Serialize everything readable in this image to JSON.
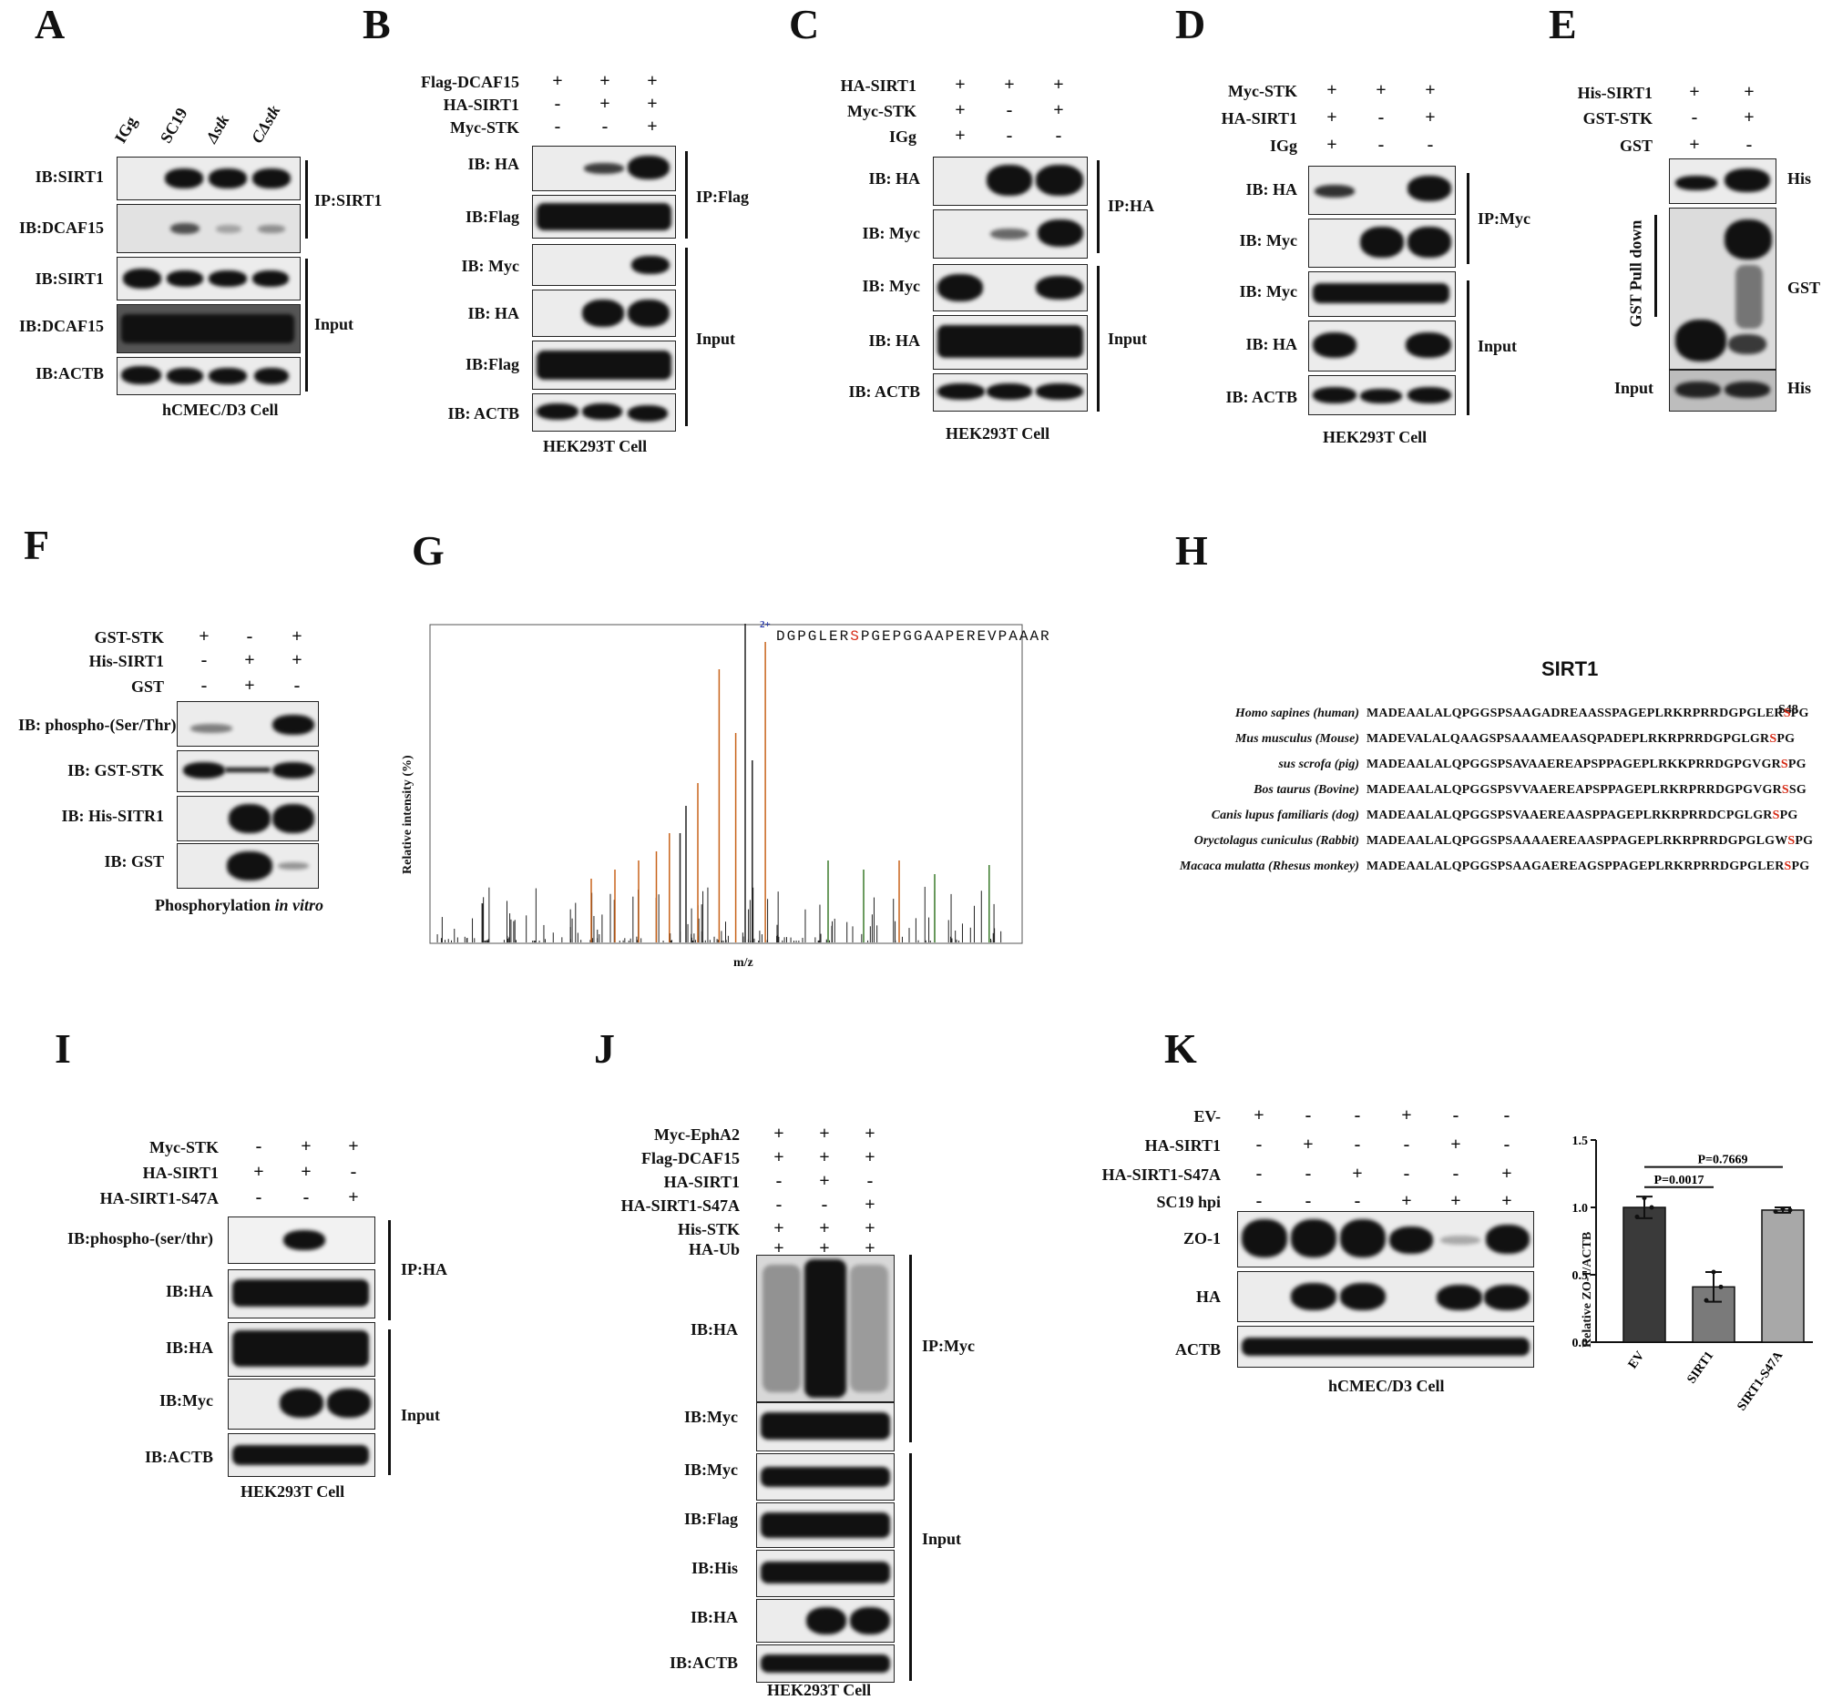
{
  "letters": {
    "A": "A",
    "B": "B",
    "C": "C",
    "D": "D",
    "E": "E",
    "F": "F",
    "G": "G",
    "H": "H",
    "I": "I",
    "J": "J",
    "K": "K"
  },
  "A": {
    "lanes": [
      "IGg",
      "SC19",
      "Δstk",
      "CΔstk"
    ],
    "rows": [
      "IB:SIRT1",
      "IB:DCAF15",
      "IB:SIRT1",
      "IB:DCAF15",
      "IB:ACTB"
    ],
    "groups": [
      "IP:SIRT1",
      "Input"
    ],
    "cell": "hCMEC/D3 Cell"
  },
  "B": {
    "conditions": [
      {
        "name": "Flag-DCAF15",
        "signs": [
          "+",
          "+",
          "+"
        ]
      },
      {
        "name": "HA-SIRT1",
        "signs": [
          "-",
          "+",
          "+"
        ]
      },
      {
        "name": "Myc-STK",
        "signs": [
          "-",
          "-",
          "+"
        ]
      }
    ],
    "rows": [
      "IB: HA",
      "IB:Flag",
      "IB: Myc",
      "IB: HA",
      "IB:Flag",
      "IB: ACTB"
    ],
    "groups": [
      "IP:Flag",
      "Input"
    ],
    "cell": "HEK293T Cell"
  },
  "C": {
    "conditions": [
      {
        "name": "HA-SIRT1",
        "signs": [
          "+",
          "+",
          "+"
        ]
      },
      {
        "name": "Myc-STK",
        "signs": [
          "+",
          "-",
          "+"
        ]
      },
      {
        "name": "IGg",
        "signs": [
          "+",
          "-",
          "-"
        ]
      }
    ],
    "rows": [
      "IB: HA",
      "IB: Myc",
      "IB: Myc",
      "IB: HA",
      "IB: ACTB"
    ],
    "groups": [
      "IP:HA",
      "Input"
    ],
    "cell": "HEK293T Cell"
  },
  "D": {
    "conditions": [
      {
        "name": "Myc-STK",
        "signs": [
          "+",
          "+",
          "+"
        ]
      },
      {
        "name": "HA-SIRT1",
        "signs": [
          "+",
          "-",
          "+"
        ]
      },
      {
        "name": "IGg",
        "signs": [
          "+",
          "-",
          "-"
        ]
      }
    ],
    "rows": [
      "IB: HA",
      "IB: Myc",
      "IB: Myc",
      "IB: HA",
      "IB: ACTB"
    ],
    "groups": [
      "IP:Myc",
      "Input"
    ],
    "cell": "HEK293T Cell"
  },
  "E": {
    "conditions": [
      {
        "name": "His-SIRT1",
        "signs": [
          "+",
          "+"
        ]
      },
      {
        "name": "GST-STK",
        "signs": [
          "-",
          "+"
        ]
      },
      {
        "name": "GST",
        "signs": [
          "+",
          "-"
        ]
      }
    ],
    "rows": [
      "His",
      "GST",
      "His"
    ],
    "side": "GST  Pull down",
    "input": "Input"
  },
  "F": {
    "conditions": [
      {
        "name": "GST-STK",
        "signs": [
          "+",
          "-",
          "+"
        ]
      },
      {
        "name": "His-SIRT1",
        "signs": [
          "-",
          "+",
          "+"
        ]
      },
      {
        "name": "GST",
        "signs": [
          "-",
          "+",
          "-"
        ]
      }
    ],
    "rows": [
      "IB: phospho-(Ser/Thr)",
      "IB: GST-STK",
      "IB: His-SITR1",
      "IB: GST"
    ],
    "caption": "Phosphorylation",
    "caption_italic": "in vitro"
  },
  "G": {
    "peptide_pre": "DGPGLER",
    "peptide_site": "S",
    "peptide_post": "PGEPGGAAPEREVPAAAR",
    "charge": "2+",
    "ylabel": "Relative intensity (%)",
    "xlabel": "m/z"
  },
  "H": {
    "title": "SIRT1",
    "site": "S48",
    "species": [
      {
        "name": "Homo sapines (human)",
        "pre": "MADEAALALQPGGSPSAAGADREAASSPAGEPLRKRPRRDGPGLER",
        "site": "S",
        "post": "PG"
      },
      {
        "name": "Mus musculus (Mouse)",
        "pre": "MADEVALALQAAGSPSAAAMEAASQPADEPLRKRPRRDGPGLGR",
        "site": "S",
        "post": "PG"
      },
      {
        "name": "sus scrofa (pig)",
        "pre": "MADEAALALQPGGSPSAVAAEREAPSPPAGEPLRKKPRRDGPGVGR",
        "site": "S",
        "post": "PG"
      },
      {
        "name": "Bos taurus (Bovine)",
        "pre": "MADEAALALQPGGSPSVVAAEREAPSPPAGEPLRKRPRRDGPGVGR",
        "site": "S",
        "post": "SG"
      },
      {
        "name": "Canis lupus familiaris (dog)",
        "pre": "MADEAALALQPGGSPSVAAEREAASPPAGEPLRKRPRRDCPGLGR",
        "site": "S",
        "post": "PG"
      },
      {
        "name": "Oryctolagus cuniculus (Rabbit)",
        "pre": "MADEAALALQPGGSPSAAAAEREAASPPAGEPLRKRPRRDGPGLGW",
        "site": "S",
        "post": "PG"
      },
      {
        "name": "Macaca mulatta (Rhesus monkey)",
        "pre": "MADEAALALQPGGSPSAAGAEREAGSPPAGEPLRKRPRRDGPGLER",
        "site": "S",
        "post": "PG"
      }
    ]
  },
  "I": {
    "conditions": [
      {
        "name": "Myc-STK",
        "signs": [
          "-",
          "+",
          "+"
        ]
      },
      {
        "name": "HA-SIRT1",
        "signs": [
          "+",
          "+",
          "-"
        ]
      },
      {
        "name": "HA-SIRT1-S47A",
        "signs": [
          "-",
          "-",
          "+"
        ]
      }
    ],
    "rows": [
      "IB:phospho-(ser/thr)",
      "IB:HA",
      "IB:HA",
      "IB:Myc",
      "IB:ACTB"
    ],
    "groups": [
      "IP:HA",
      "Input"
    ],
    "cell": "HEK293T Cell"
  },
  "J": {
    "conditions": [
      {
        "name": "Myc-EphA2",
        "signs": [
          "+",
          "+",
          "+"
        ]
      },
      {
        "name": "Flag-DCAF15",
        "signs": [
          "+",
          "+",
          "+"
        ]
      },
      {
        "name": "HA-SIRT1",
        "signs": [
          "-",
          "+",
          "-"
        ]
      },
      {
        "name": "HA-SIRT1-S47A",
        "signs": [
          "-",
          "-",
          "+"
        ]
      },
      {
        "name": "His-STK",
        "signs": [
          "+",
          "+",
          "+"
        ]
      },
      {
        "name": "HA-Ub",
        "signs": [
          "+",
          "+",
          "+"
        ]
      }
    ],
    "rows": [
      "IB:HA",
      "IB:Myc",
      "IB:Myc",
      "IB:Flag",
      "IB:His",
      "IB:HA",
      "IB:ACTB"
    ],
    "groups": [
      "IP:Myc",
      "Input"
    ],
    "cell": "HEK293T Cell"
  },
  "K": {
    "conditions": [
      {
        "name": "EV-",
        "signs": [
          "+",
          "-",
          "-",
          "+",
          "-",
          "-"
        ]
      },
      {
        "name": "HA-SIRT1",
        "signs": [
          "-",
          "+",
          "-",
          "-",
          "+",
          "-"
        ]
      },
      {
        "name": "HA-SIRT1-S47A",
        "signs": [
          "-",
          "-",
          "+",
          "-",
          "-",
          "+"
        ]
      },
      {
        "name": "SC19 hpi",
        "signs": [
          "-",
          "-",
          "-",
          "+",
          "+",
          "+"
        ]
      }
    ],
    "rows": [
      "ZO-1",
      "HA",
      "ACTB"
    ],
    "cell": "hCMEC/D3 Cell"
  },
  "chart_data": {
    "type": "bar",
    "categories": [
      "EV",
      "SIRT1",
      "SIRT1-S47A"
    ],
    "values": [
      1.0,
      0.41,
      0.98
    ],
    "errors": [
      0.08,
      0.11,
      0.02
    ],
    "points": [
      [
        0.93,
        1.07,
        1.0
      ],
      [
        0.31,
        0.52,
        0.41
      ],
      [
        0.97,
        0.99,
        0.98
      ]
    ],
    "colors": [
      "#3a3a3a",
      "#7a7a7a",
      "#a8a8a8"
    ],
    "ylabel": "Relative ZO-1/ACTB",
    "ylim": [
      0,
      1.5
    ],
    "yticks": [
      "0.0",
      "0.5",
      "1.0",
      "1.5"
    ],
    "annotations": [
      "P=0.0017",
      "P=0.7669"
    ]
  }
}
